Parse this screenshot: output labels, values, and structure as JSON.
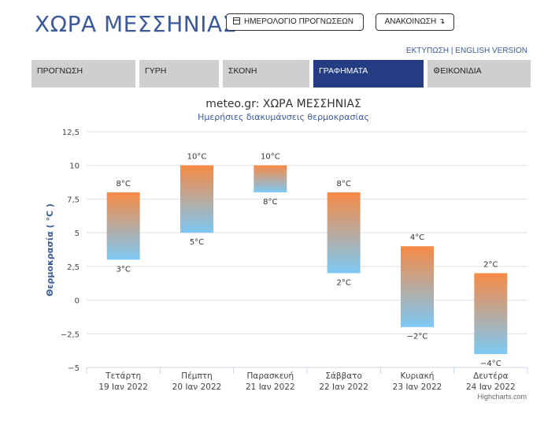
{
  "header": {
    "title": "ΧΩΡΑ ΜΕΣΣΗΝΙΑΣ",
    "calendar_button": "ΗΜΕΡΟΛΟΓΙΟ ΠΡΟΓΝΩΣΕΩΝ",
    "announcement_button": "ΑΝΑΚΟΙΝΩΣΗ ↴",
    "print_link": "ΕΚΤΥΠΩΣΗ",
    "separator": " | ",
    "english_link": "ENGLISH VERSION"
  },
  "tabs": [
    {
      "label": "ΠΡΟΓΝΩΣΗ",
      "active": false
    },
    {
      "label": "ΓΥΡΗ",
      "active": false
    },
    {
      "label": "ΣΚΟΝΗ",
      "active": false
    },
    {
      "label": "ΓΡΑΦΗΜΑΤΑ",
      "active": true
    },
    {
      "label": "ΕΙΚΟΝΙΔΙΑ",
      "active": false,
      "icon": "gear-icon"
    }
  ],
  "colors": {
    "accent": "#233c82",
    "title": "#3c5a9a",
    "bar_top": "#f68a45",
    "bar_bottom": "#7dc8f4"
  },
  "chart_data": {
    "type": "bar",
    "subtype": "columnrange",
    "title": "meteo.gr: ΧΩΡΑ ΜΕΣΣΗΝΙΑΣ",
    "subtitle": "Ημερήσιες διακυμάνσεις θερμοκρασίας",
    "ylabel": "Θερμοκρασία ( °C )",
    "ylim": [
      -5,
      12.5
    ],
    "yticks": [
      -5,
      -2.5,
      0,
      2.5,
      5,
      7.5,
      10,
      12.5
    ],
    "ytick_labels": [
      "−5",
      "−2,5",
      "0",
      "2,5",
      "5",
      "7,5",
      "10",
      "12,5"
    ],
    "categories": [
      [
        "Τετάρτη",
        "19 Ιαν 2022"
      ],
      [
        "Πέμπτη",
        "20 Ιαν 2022"
      ],
      [
        "Παρασκευή",
        "21 Ιαν 2022"
      ],
      [
        "Σάββατο",
        "22 Ιαν 2022"
      ],
      [
        "Κυριακή",
        "23 Ιαν 2022"
      ],
      [
        "Δευτέρα",
        "24 Ιαν 2022"
      ]
    ],
    "low": [
      3,
      5,
      8,
      2,
      -2,
      -4
    ],
    "high": [
      8,
      10,
      10,
      8,
      4,
      2
    ],
    "low_labels": [
      "3°C",
      "5°C",
      "8°C",
      "2°C",
      "−2°C",
      "−4°C"
    ],
    "high_labels": [
      "8°C",
      "10°C",
      "10°C",
      "8°C",
      "4°C",
      "2°C"
    ],
    "grid": true,
    "credits": "Highcharts.com"
  }
}
